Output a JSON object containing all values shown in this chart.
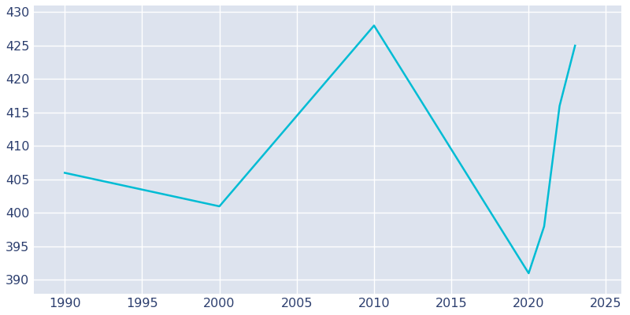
{
  "years": [
    1990,
    2000,
    2010,
    2020,
    2021,
    2022,
    2023
  ],
  "values": [
    406,
    401,
    428,
    391,
    398,
    416,
    425
  ],
  "line_color": "#00BCD4",
  "fig_bg_color": "#FFFFFF",
  "plot_bg_color": "#DDE3EE",
  "grid_color": "#FFFFFF",
  "xlim": [
    1988,
    2026
  ],
  "ylim": [
    388,
    431
  ],
  "xticks": [
    1990,
    1995,
    2000,
    2005,
    2010,
    2015,
    2020,
    2025
  ],
  "yticks": [
    390,
    395,
    400,
    405,
    410,
    415,
    420,
    425,
    430
  ],
  "linewidth": 1.8,
  "tick_color": "#2C3E6E",
  "tick_fontsize": 11.5
}
